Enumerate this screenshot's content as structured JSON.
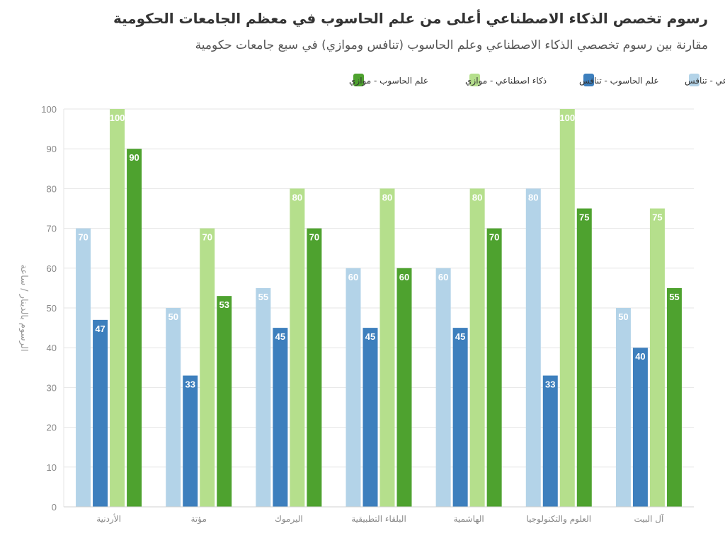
{
  "chart_data": {
    "type": "bar",
    "title": "رسوم تخصص الذكاء الاصطناعي أعلى من علم الحاسوب في معظم الجامعات الحكومية",
    "subtitle": "مقارنة بين رسوم تخصصي الذكاء الاصطناعي وعلم الحاسوب (تنافس وموازي) في سبع جامعات حكومية",
    "ylabel": "الرسوم بالدينار / ساعة",
    "xlabel": "",
    "ylim": [
      0,
      100
    ],
    "yticks": [
      "0",
      "10",
      "20",
      "30",
      "40",
      "50",
      "60",
      "70",
      "80",
      "90",
      "100"
    ],
    "grid": true,
    "legend_position": "top-right",
    "categories": [
      "الأردنية",
      "مؤتة",
      "اليرموك",
      "البلقاء التطبيقية",
      "الهاشمية",
      "العلوم والتكنولوجيا",
      "آل البيت"
    ],
    "series": [
      {
        "name": "ذكاء اصطناعي - تنافس",
        "color": "#b3d3e8",
        "values": [
          70,
          50,
          55,
          60,
          60,
          80,
          50
        ]
      },
      {
        "name": "علم الحاسوب - تنافس",
        "color": "#3d7fbd",
        "values": [
          47,
          33,
          45,
          45,
          45,
          33,
          40
        ]
      },
      {
        "name": "ذكاء اصطناعي - موازي",
        "color": "#b5df8c",
        "values": [
          100,
          70,
          80,
          80,
          80,
          100,
          75
        ]
      },
      {
        "name": "علم الحاسوب - موازي",
        "color": "#4ea22f",
        "values": [
          90,
          53,
          70,
          60,
          70,
          75,
          55
        ]
      }
    ]
  }
}
